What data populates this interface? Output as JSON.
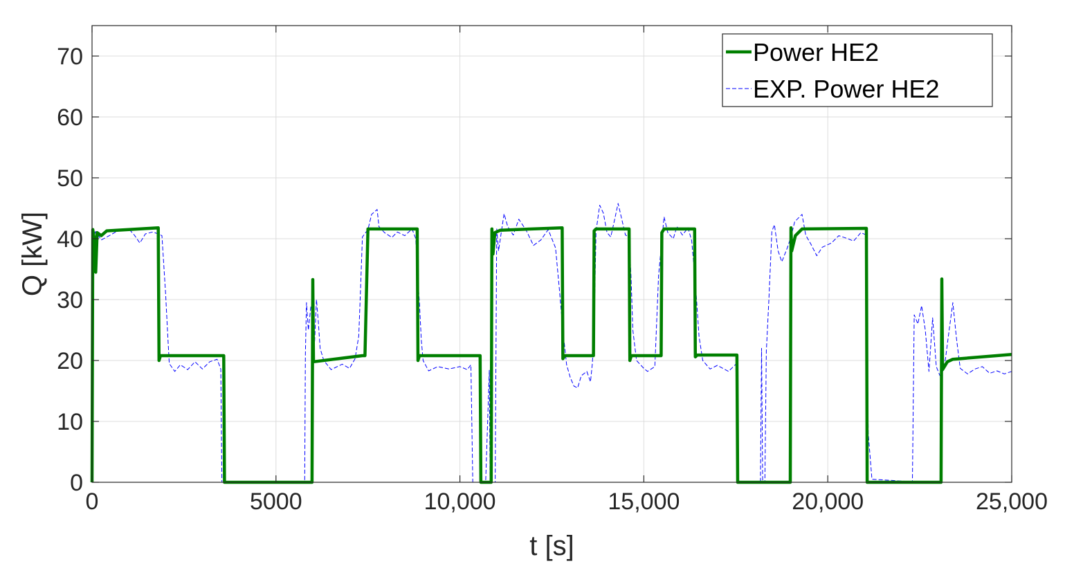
{
  "chart_data": {
    "type": "line",
    "xlabel": "t [s]",
    "ylabel": "Q [kW]",
    "xlim": [
      0,
      25000
    ],
    "ylim": [
      0,
      75
    ],
    "grid": true,
    "legend_position": "top-right",
    "x_ticks": [
      0,
      5000,
      10000,
      15000,
      20000,
      25000
    ],
    "x_tick_labels": [
      "0",
      "5000",
      "10,000",
      "15,000",
      "20,000",
      "25,000"
    ],
    "y_ticks": [
      0,
      10,
      20,
      30,
      40,
      50,
      60,
      70
    ],
    "y_tick_labels": [
      "0",
      "10",
      "20",
      "30",
      "40",
      "50",
      "60",
      "70"
    ],
    "series": [
      {
        "name": "Power HE2",
        "color": "#007f00",
        "style": "solid",
        "points": [
          [
            0,
            0
          ],
          [
            20,
            41.5
          ],
          [
            60,
            40
          ],
          [
            100,
            34.5
          ],
          [
            140,
            41
          ],
          [
            250,
            40.5
          ],
          [
            400,
            41.3
          ],
          [
            1800,
            41.8
          ],
          [
            1820,
            20
          ],
          [
            1860,
            20.8
          ],
          [
            3580,
            20.8
          ],
          [
            3600,
            0
          ],
          [
            5980,
            0
          ],
          [
            6000,
            33.3
          ],
          [
            6020,
            19.8
          ],
          [
            7350,
            20.8
          ],
          [
            7420,
            20.8
          ],
          [
            7500,
            41.6
          ],
          [
            8840,
            41.6
          ],
          [
            8860,
            20
          ],
          [
            8900,
            20.8
          ],
          [
            10550,
            20.8
          ],
          [
            10570,
            0
          ],
          [
            10850,
            0
          ],
          [
            10870,
            41.6
          ],
          [
            10900,
            37.5
          ],
          [
            10950,
            41
          ],
          [
            11100,
            41.4
          ],
          [
            12780,
            41.8
          ],
          [
            12800,
            20.3
          ],
          [
            12850,
            20.8
          ],
          [
            13630,
            20.8
          ],
          [
            13650,
            41.3
          ],
          [
            13700,
            41.6
          ],
          [
            14600,
            41.6
          ],
          [
            14620,
            20
          ],
          [
            14660,
            20.8
          ],
          [
            15470,
            20.8
          ],
          [
            15490,
            41
          ],
          [
            15550,
            41.6
          ],
          [
            16380,
            41.6
          ],
          [
            16400,
            20.6
          ],
          [
            16450,
            20.9
          ],
          [
            17530,
            20.9
          ],
          [
            17550,
            0
          ],
          [
            18980,
            0
          ],
          [
            19000,
            41.8
          ],
          [
            19020,
            38
          ],
          [
            19120,
            40.5
          ],
          [
            19300,
            41.6
          ],
          [
            21050,
            41.7
          ],
          [
            21070,
            0
          ],
          [
            23080,
            0
          ],
          [
            23100,
            33.4
          ],
          [
            23120,
            18.5
          ],
          [
            23250,
            19.8
          ],
          [
            23400,
            20.2
          ],
          [
            25000,
            21
          ]
        ]
      },
      {
        "name": "EXP. Power HE2",
        "color": "#0000ff",
        "style": "dashed",
        "points": [
          [
            0,
            0
          ],
          [
            30,
            40
          ],
          [
            100,
            41.2
          ],
          [
            250,
            39.8
          ],
          [
            500,
            40.6
          ],
          [
            750,
            41.5
          ],
          [
            1000,
            41.6
          ],
          [
            1150,
            40.6
          ],
          [
            1300,
            39.3
          ],
          [
            1450,
            40.8
          ],
          [
            1650,
            41.1
          ],
          [
            1800,
            40.8
          ],
          [
            1900,
            40.5
          ],
          [
            2000,
            31
          ],
          [
            2050,
            25
          ],
          [
            2100,
            19.5
          ],
          [
            2250,
            18.2
          ],
          [
            2400,
            19.3
          ],
          [
            2600,
            18.5
          ],
          [
            2800,
            19.8
          ],
          [
            3000,
            18.6
          ],
          [
            3200,
            19.8
          ],
          [
            3400,
            20.2
          ],
          [
            3500,
            18.6
          ],
          [
            3530,
            0
          ],
          [
            3560,
            0
          ],
          [
            5780,
            0
          ],
          [
            5800,
            21
          ],
          [
            5830,
            29.5
          ],
          [
            5880,
            25
          ],
          [
            5950,
            29
          ],
          [
            6000,
            28.8
          ],
          [
            6050,
            23
          ],
          [
            6100,
            30
          ],
          [
            6150,
            26.5
          ],
          [
            6200,
            22
          ],
          [
            6300,
            20
          ],
          [
            6500,
            18.5
          ],
          [
            6800,
            19.4
          ],
          [
            7000,
            18.7
          ],
          [
            7150,
            20.3
          ],
          [
            7250,
            24
          ],
          [
            7300,
            32
          ],
          [
            7350,
            40.3
          ],
          [
            7500,
            41.5
          ],
          [
            7600,
            44
          ],
          [
            7750,
            44.8
          ],
          [
            7800,
            42
          ],
          [
            7950,
            41
          ],
          [
            8150,
            40.2
          ],
          [
            8300,
            41.1
          ],
          [
            8500,
            40.5
          ],
          [
            8700,
            41.6
          ],
          [
            8800,
            40
          ],
          [
            8860,
            33
          ],
          [
            8900,
            29.5
          ],
          [
            8950,
            23.4
          ],
          [
            9000,
            20
          ],
          [
            9150,
            18.3
          ],
          [
            9400,
            19
          ],
          [
            9700,
            18.6
          ],
          [
            10000,
            19
          ],
          [
            10200,
            18.5
          ],
          [
            10300,
            19.3
          ],
          [
            10350,
            0
          ],
          [
            10700,
            0
          ],
          [
            10800,
            18.4
          ],
          [
            10820,
            0
          ],
          [
            10960,
            0
          ],
          [
            11000,
            41.6
          ],
          [
            11050,
            38
          ],
          [
            11200,
            44.1
          ],
          [
            11300,
            42
          ],
          [
            11450,
            40.6
          ],
          [
            11600,
            43.2
          ],
          [
            11800,
            41.4
          ],
          [
            12000,
            38.9
          ],
          [
            12200,
            39.8
          ],
          [
            12400,
            41.5
          ],
          [
            12600,
            38.5
          ],
          [
            12700,
            32
          ],
          [
            12800,
            25
          ],
          [
            12900,
            19.3
          ],
          [
            13000,
            17.2
          ],
          [
            13100,
            15.8
          ],
          [
            13200,
            15.5
          ],
          [
            13300,
            17.5
          ],
          [
            13450,
            18.2
          ],
          [
            13550,
            16.5
          ],
          [
            13600,
            19.5
          ],
          [
            13650,
            25
          ],
          [
            13700,
            41.2
          ],
          [
            13800,
            45.5
          ],
          [
            13900,
            44.2
          ],
          [
            14000,
            41
          ],
          [
            14100,
            40.3
          ],
          [
            14200,
            43
          ],
          [
            14300,
            45.8
          ],
          [
            14400,
            43.2
          ],
          [
            14500,
            40.6
          ],
          [
            14600,
            40.3
          ],
          [
            14650,
            34
          ],
          [
            14700,
            25
          ],
          [
            14800,
            20
          ],
          [
            15000,
            18.7
          ],
          [
            15100,
            18.2
          ],
          [
            15300,
            19
          ],
          [
            15400,
            34
          ],
          [
            15550,
            43.6
          ],
          [
            15650,
            41
          ],
          [
            15800,
            40
          ],
          [
            15900,
            42
          ],
          [
            16050,
            40.6
          ],
          [
            16200,
            41.8
          ],
          [
            16300,
            39.7
          ],
          [
            16400,
            33
          ],
          [
            16500,
            24
          ],
          [
            16600,
            20
          ],
          [
            16800,
            18.6
          ],
          [
            17000,
            19.2
          ],
          [
            17300,
            18.2
          ],
          [
            17500,
            19.4
          ],
          [
            17550,
            0
          ],
          [
            18170,
            0
          ],
          [
            18200,
            22
          ],
          [
            18230,
            0
          ],
          [
            18290,
            0
          ],
          [
            18330,
            21.5
          ],
          [
            18400,
            30
          ],
          [
            18480,
            41.2
          ],
          [
            18550,
            42.3
          ],
          [
            18650,
            38
          ],
          [
            18750,
            36.2
          ],
          [
            18900,
            38.5
          ],
          [
            19000,
            40.3
          ],
          [
            19100,
            42.8
          ],
          [
            19300,
            44
          ],
          [
            19400,
            40.6
          ],
          [
            19550,
            39
          ],
          [
            19700,
            37.2
          ],
          [
            19850,
            38.6
          ],
          [
            20100,
            39.3
          ],
          [
            20300,
            40.5
          ],
          [
            20550,
            40
          ],
          [
            20700,
            39.6
          ],
          [
            20900,
            41
          ],
          [
            21050,
            40.6
          ],
          [
            21100,
            8
          ],
          [
            21200,
            0.5
          ],
          [
            22000,
            0.2
          ],
          [
            22300,
            0.1
          ],
          [
            22350,
            27.5
          ],
          [
            22450,
            26
          ],
          [
            22550,
            29
          ],
          [
            22650,
            25
          ],
          [
            22750,
            18.2
          ],
          [
            22850,
            27
          ],
          [
            22950,
            19
          ],
          [
            23050,
            17.5
          ],
          [
            23150,
            18.5
          ],
          [
            23200,
            20.3
          ],
          [
            23300,
            25
          ],
          [
            23400,
            29.5
          ],
          [
            23500,
            23.5
          ],
          [
            23600,
            18.7
          ],
          [
            23800,
            17.8
          ],
          [
            24000,
            18.6
          ],
          [
            24200,
            19
          ],
          [
            24400,
            17.9
          ],
          [
            24600,
            18.3
          ],
          [
            24800,
            17.8
          ],
          [
            25000,
            18.2
          ]
        ]
      }
    ]
  }
}
